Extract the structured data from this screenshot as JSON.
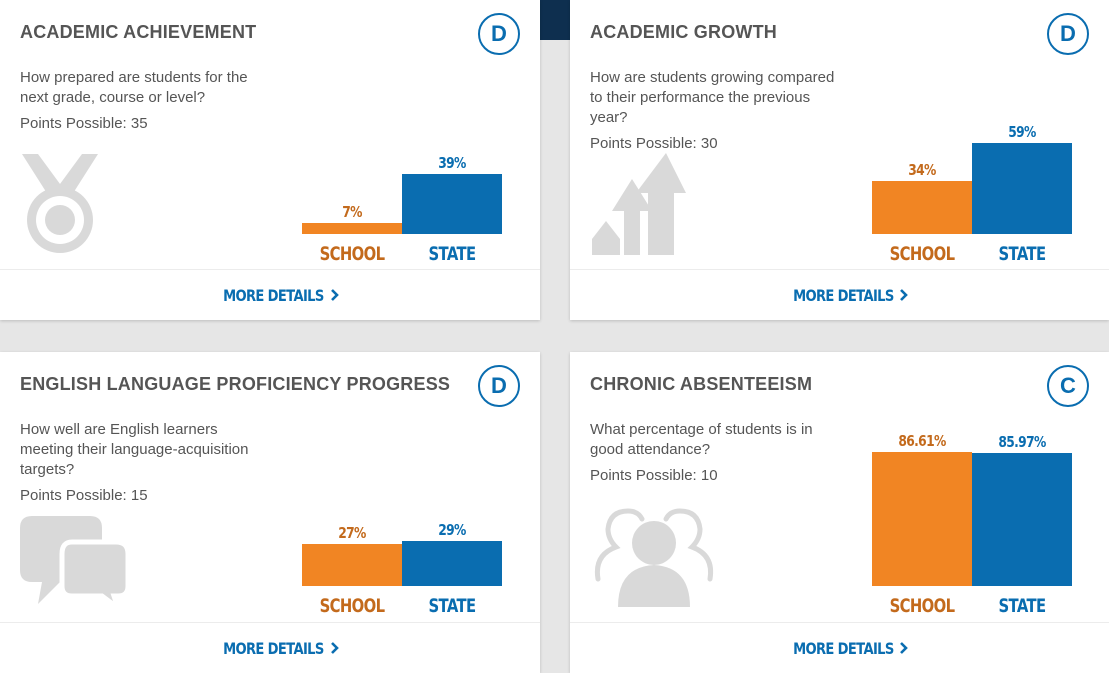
{
  "colors": {
    "school": "#f18523",
    "state": "#0a6db0",
    "icon": "#d9d9d9",
    "grade_ring": "#0a6db0"
  },
  "footer_link": "MORE DETAILS",
  "cards": [
    {
      "title": "ACADEMIC ACHIEVEMENT",
      "grade": "D",
      "question": "How prepared are students for the next grade, course or level?",
      "points": "Points Possible: 35",
      "icon": "medal-icon",
      "school_label": "SCHOOL",
      "state_label": "STATE",
      "school_value": "7%",
      "state_value": "39%",
      "school_pct": 7,
      "state_pct": 39
    },
    {
      "title": "ACADEMIC GROWTH",
      "grade": "D",
      "question": "How are students growing compared to their performance the previous year?",
      "points": "Points Possible: 30",
      "icon": "growth-arrows-icon",
      "school_label": "SCHOOL",
      "state_label": "STATE",
      "school_value": "34%",
      "state_value": "59%",
      "school_pct": 34,
      "state_pct": 59
    },
    {
      "title": "ENGLISH LANGUAGE PROFICIENCY PROGRESS",
      "grade": "D",
      "question": "How well are English learners meeting their language-acquisition targets?",
      "points": "Points Possible: 15",
      "icon": "speech-bubbles-icon",
      "school_label": "SCHOOL",
      "state_label": "STATE",
      "school_value": "27%",
      "state_value": "29%",
      "school_pct": 27,
      "state_pct": 29
    },
    {
      "title": "CHRONIC ABSENTEEISM",
      "grade": "C",
      "question": "What percentage of students is in good attendance?",
      "points": "Points Possible: 10",
      "icon": "people-icon",
      "school_label": "SCHOOL",
      "state_label": "STATE",
      "school_value": "86.61%",
      "state_value": "85.97%",
      "school_pct": 86.61,
      "state_pct": 85.97
    }
  ]
}
